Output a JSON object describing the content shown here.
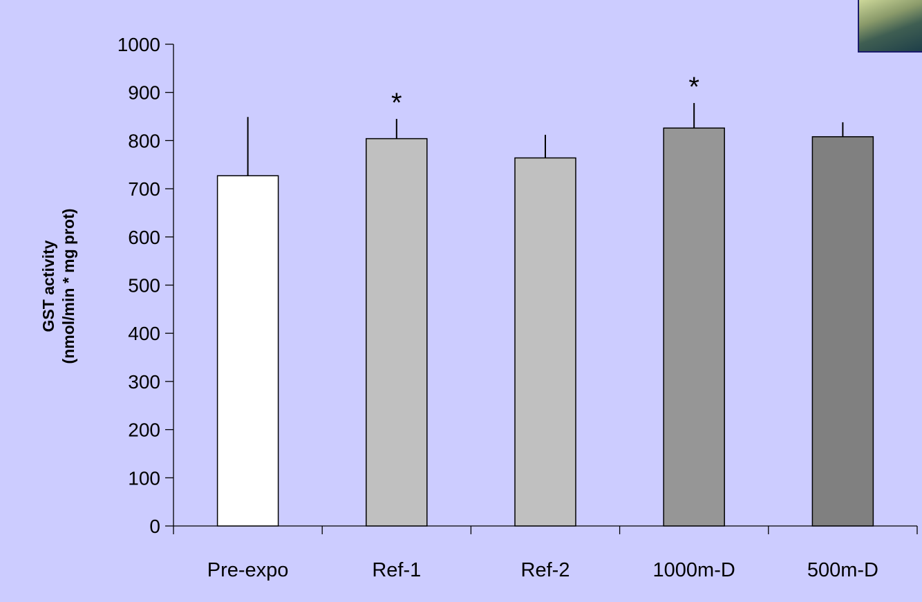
{
  "chart_data": {
    "type": "bar",
    "categories": [
      "Pre-expo",
      "Ref-1",
      "Ref-2",
      "1000m-D",
      "500m-D"
    ],
    "values": [
      727,
      804,
      764,
      826,
      808
    ],
    "error_upper": [
      849,
      845,
      812,
      878,
      838
    ],
    "significance": [
      "",
      "*",
      "",
      "*",
      ""
    ],
    "bar_colors": [
      "#FFFFFF",
      "#C0C0C0",
      "#C0C0C0",
      "#969696",
      "#808080"
    ],
    "ylabel_line1": "GST activity",
    "ylabel_line2": "(nmol/min * mg prot)",
    "xlabel": "",
    "title": "",
    "ylim": [
      0,
      1000
    ],
    "yticks": [
      0,
      100,
      200,
      300,
      400,
      500,
      600,
      700,
      800,
      900,
      1000
    ],
    "grid": false,
    "legend": "none"
  },
  "colors": {
    "background": "#CCCCFF",
    "axis": "#000000"
  },
  "decorations": {
    "corner_photo_icon": "photo-thumbnail"
  }
}
